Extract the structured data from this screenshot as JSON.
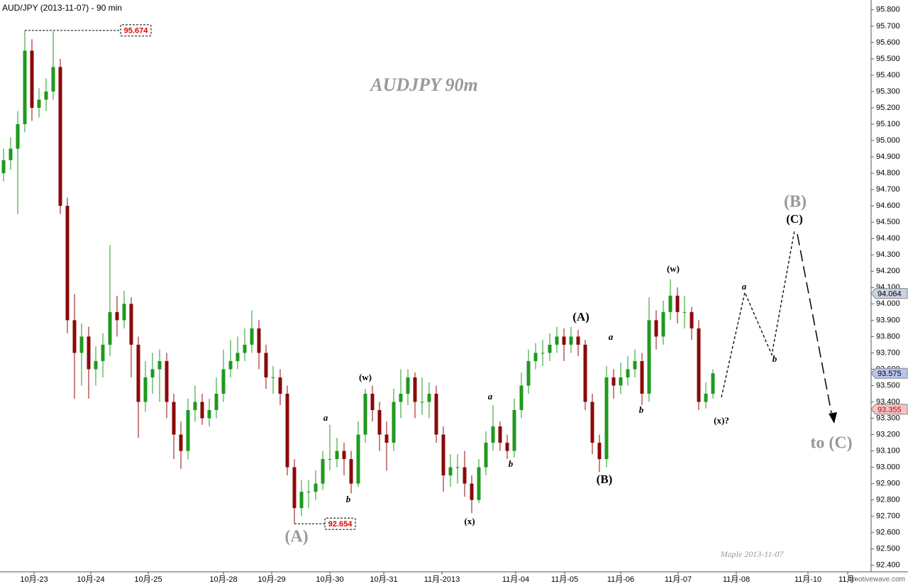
{
  "chart_data": {
    "type": "candlestick",
    "title": "AUD/JPY (2013-11-07) - 90 min",
    "up_color": "#1f9a1f",
    "down_color": "#8b0a0a",
    "x": [
      0,
      1,
      2,
      3,
      4,
      5,
      6,
      7,
      8,
      9,
      10,
      11,
      12,
      13,
      14,
      15,
      16,
      17,
      18,
      19,
      20,
      21,
      22,
      23,
      24,
      25,
      26,
      27,
      28,
      29,
      30,
      31,
      32,
      33,
      34,
      35,
      36,
      37,
      38,
      39,
      40,
      41,
      42,
      43,
      44,
      45,
      46,
      47,
      48,
      49,
      50,
      51,
      52,
      53,
      54,
      55,
      56,
      57,
      58,
      59,
      60,
      61,
      62,
      63,
      64,
      65,
      66,
      67,
      68,
      69,
      70,
      71,
      72,
      73,
      74,
      75,
      76,
      77,
      78,
      79,
      80,
      81,
      82,
      83,
      84,
      85,
      86,
      87,
      88,
      89,
      90,
      91,
      92,
      93,
      94,
      95,
      96,
      97,
      98,
      99,
      100
    ],
    "open": [
      94.8,
      94.88,
      94.95,
      95.1,
      95.55,
      95.2,
      95.25,
      95.3,
      95.45,
      94.6,
      93.9,
      93.7,
      93.8,
      93.6,
      93.65,
      93.75,
      93.95,
      93.9,
      94.0,
      93.75,
      93.4,
      93.55,
      93.6,
      93.65,
      93.4,
      93.2,
      93.1,
      93.35,
      93.4,
      93.3,
      93.35,
      93.45,
      93.6,
      93.65,
      93.7,
      93.75,
      93.85,
      93.7,
      93.55,
      93.55,
      93.45,
      93.0,
      92.75,
      92.85,
      92.85,
      92.9,
      93.05,
      93.05,
      93.1,
      93.05,
      92.9,
      93.2,
      93.45,
      93.35,
      93.2,
      93.15,
      93.4,
      93.45,
      93.55,
      93.4,
      93.4,
      93.45,
      93.2,
      92.95,
      93.0,
      93.0,
      92.9,
      92.8,
      93.0,
      93.15,
      93.25,
      93.15,
      93.1,
      93.35,
      93.5,
      93.65,
      93.7,
      93.7,
      93.75,
      93.8,
      93.75,
      93.8,
      93.75,
      93.4,
      93.15,
      93.05,
      93.55,
      93.5,
      93.55,
      93.6,
      93.65,
      93.45,
      93.9,
      93.8,
      93.95,
      94.05,
      93.95,
      93.95,
      93.85,
      93.4,
      93.45
    ],
    "high": [
      94.95,
      95.02,
      95.18,
      95.674,
      95.62,
      95.32,
      95.38,
      95.67,
      95.5,
      94.65,
      94.06,
      93.88,
      93.86,
      93.74,
      93.82,
      94.36,
      94.05,
      94.08,
      94.04,
      93.8,
      93.65,
      93.7,
      93.72,
      93.7,
      93.45,
      93.28,
      93.42,
      93.5,
      93.45,
      93.42,
      93.55,
      93.72,
      93.78,
      93.8,
      93.85,
      93.96,
      93.9,
      93.75,
      93.62,
      93.6,
      93.5,
      93.05,
      92.92,
      92.92,
      92.98,
      93.1,
      93.26,
      93.18,
      93.15,
      93.1,
      93.28,
      93.48,
      93.5,
      93.4,
      93.28,
      93.48,
      93.6,
      93.6,
      93.58,
      93.55,
      93.52,
      93.5,
      93.25,
      93.08,
      93.08,
      93.1,
      92.95,
      93.05,
      93.22,
      93.38,
      93.28,
      93.2,
      93.42,
      93.58,
      93.72,
      93.76,
      93.78,
      93.82,
      93.86,
      93.85,
      93.86,
      93.84,
      93.78,
      93.45,
      93.2,
      93.62,
      93.6,
      93.64,
      93.68,
      93.72,
      93.7,
      94.04,
      93.96,
      94.02,
      94.15,
      94.1,
      94.05,
      93.98,
      93.9,
      93.52,
      93.6
    ],
    "low": [
      94.75,
      94.82,
      94.55,
      95.05,
      95.12,
      95.14,
      95.18,
      95.25,
      94.55,
      93.82,
      93.42,
      93.5,
      93.42,
      93.5,
      93.55,
      93.68,
      93.8,
      93.85,
      93.55,
      93.18,
      93.34,
      93.45,
      93.4,
      93.3,
      93.05,
      92.99,
      93.05,
      93.28,
      93.26,
      93.25,
      93.3,
      93.4,
      93.55,
      93.6,
      93.65,
      93.7,
      93.6,
      93.48,
      93.45,
      93.38,
      92.95,
      92.654,
      92.7,
      92.75,
      92.8,
      92.86,
      92.98,
      93.0,
      92.95,
      92.84,
      92.88,
      93.15,
      93.28,
      93.1,
      92.98,
      93.1,
      93.3,
      93.38,
      93.3,
      93.32,
      93.3,
      93.15,
      92.85,
      92.88,
      92.9,
      92.82,
      92.72,
      92.78,
      92.95,
      93.1,
      93.1,
      93.05,
      93.06,
      93.3,
      93.45,
      93.6,
      93.62,
      93.65,
      93.7,
      93.65,
      93.7,
      93.68,
      93.35,
      93.08,
      92.97,
      93.0,
      93.42,
      93.45,
      93.5,
      93.55,
      93.38,
      93.4,
      93.72,
      93.75,
      93.9,
      93.88,
      93.85,
      93.78,
      93.35,
      93.36,
      93.42
    ],
    "close": [
      94.88,
      94.95,
      95.1,
      95.55,
      95.2,
      95.25,
      95.3,
      95.45,
      94.6,
      93.9,
      93.7,
      93.8,
      93.6,
      93.65,
      93.75,
      93.95,
      93.9,
      94.0,
      93.75,
      93.4,
      93.55,
      93.6,
      93.65,
      93.4,
      93.2,
      93.1,
      93.35,
      93.4,
      93.3,
      93.35,
      93.45,
      93.6,
      93.65,
      93.7,
      93.75,
      93.85,
      93.7,
      93.55,
      93.55,
      93.45,
      93.0,
      92.75,
      92.85,
      92.85,
      92.9,
      93.05,
      93.05,
      93.1,
      93.05,
      92.9,
      93.2,
      93.45,
      93.35,
      93.2,
      93.15,
      93.4,
      93.45,
      93.55,
      93.4,
      93.4,
      93.45,
      93.2,
      92.95,
      93.0,
      93.0,
      92.9,
      92.8,
      93.0,
      93.15,
      93.25,
      93.15,
      93.1,
      93.35,
      93.5,
      93.65,
      93.7,
      93.7,
      93.75,
      93.8,
      93.75,
      93.8,
      93.75,
      93.4,
      93.15,
      93.05,
      93.55,
      93.5,
      93.55,
      93.6,
      93.65,
      93.45,
      93.9,
      93.8,
      93.95,
      94.05,
      93.95,
      93.95,
      93.85,
      93.4,
      93.45,
      93.575
    ],
    "xlim": [
      -0.5,
      122.3
    ],
    "xticks": [
      {
        "value": 4.3,
        "label": "10月-23"
      },
      {
        "value": 12.3,
        "label": "10月-24"
      },
      {
        "value": 20.4,
        "label": "10月-25"
      },
      {
        "value": 31,
        "label": "10月-28"
      },
      {
        "value": 37.8,
        "label": "10月-29"
      },
      {
        "value": 46,
        "label": "10月-30"
      },
      {
        "value": 53.6,
        "label": "10月-31"
      },
      {
        "value": 61.8,
        "label": "11月-2013"
      },
      {
        "value": 72.2,
        "label": "11月-04"
      },
      {
        "value": 79.1,
        "label": "11月-05"
      },
      {
        "value": 87,
        "label": "11月-06"
      },
      {
        "value": 95.1,
        "label": "11月-07"
      },
      {
        "value": 103.3,
        "label": "11月-08"
      },
      {
        "value": 113.4,
        "label": "11月-10"
      },
      {
        "value": 119,
        "label": "11月-"
      }
    ],
    "ylim": [
      92.36,
      95.86
    ],
    "yticks": [
      {
        "value": 92.4,
        "label": "92.400"
      },
      {
        "value": 92.5,
        "label": "92.500"
      },
      {
        "value": 92.6,
        "label": "92.600"
      },
      {
        "value": 92.7,
        "label": "92.700"
      },
      {
        "value": 92.8,
        "label": "92.800"
      },
      {
        "value": 92.9,
        "label": "92.900"
      },
      {
        "value": 93.0,
        "label": "93.000"
      },
      {
        "value": 93.1,
        "label": "93.100"
      },
      {
        "value": 93.2,
        "label": "93.200"
      },
      {
        "value": 93.3,
        "label": "93.300"
      },
      {
        "value": 93.4,
        "label": "93.400"
      },
      {
        "value": 93.5,
        "label": "93.500"
      },
      {
        "value": 93.6,
        "label": "93.600"
      },
      {
        "value": 93.7,
        "label": "93.700"
      },
      {
        "value": 93.8,
        "label": "93.800"
      },
      {
        "value": 93.9,
        "label": "93.900"
      },
      {
        "value": 94.0,
        "label": "94.000"
      },
      {
        "value": 94.1,
        "label": "94.100"
      },
      {
        "value": 94.2,
        "label": "94.200"
      },
      {
        "value": 94.3,
        "label": "94.300"
      },
      {
        "value": 94.4,
        "label": "94.400"
      },
      {
        "value": 94.5,
        "label": "94.500"
      },
      {
        "value": 94.6,
        "label": "94.600"
      },
      {
        "value": 94.7,
        "label": "94.700"
      },
      {
        "value": 94.8,
        "label": "94.800"
      },
      {
        "value": 94.9,
        "label": "94.900"
      },
      {
        "value": 95.0,
        "label": "95.000"
      },
      {
        "value": 95.1,
        "label": "95.100"
      },
      {
        "value": 95.2,
        "label": "95.200"
      },
      {
        "value": 95.3,
        "label": "95.300"
      },
      {
        "value": 95.4,
        "label": "95.400"
      },
      {
        "value": 95.5,
        "label": "95.500"
      },
      {
        "value": 95.6,
        "label": "95.600"
      },
      {
        "value": 95.7,
        "label": "95.700"
      },
      {
        "value": 95.8,
        "label": "95.800"
      }
    ],
    "price_labels": [
      95.674,
      92.654
    ],
    "axis_badges": [
      {
        "value": 94.064,
        "color": "#c9d3e3"
      },
      {
        "value": 93.575,
        "color": "#b9c3f0"
      },
      {
        "value": 93.355,
        "color": "#f6c4c4"
      }
    ],
    "annotations": [
      {
        "text": "AUDJPY  90m"
      },
      {
        "text": "(A)"
      },
      {
        "text": "a"
      },
      {
        "text": "b"
      },
      {
        "text": "(w)"
      },
      {
        "text": "(x)"
      },
      {
        "text": "a"
      },
      {
        "text": "b"
      },
      {
        "text": "(A)"
      },
      {
        "text": "a"
      },
      {
        "text": "(B)"
      },
      {
        "text": "b"
      },
      {
        "text": "(w)"
      },
      {
        "text": "(x)?"
      },
      {
        "text": "a"
      },
      {
        "text": "b"
      },
      {
        "text": "(C)"
      },
      {
        "text": "(B)"
      },
      {
        "text": "to (C)"
      },
      {
        "text": "Maple  2013-11-07"
      }
    ],
    "watermark": "1motivewave.com"
  }
}
